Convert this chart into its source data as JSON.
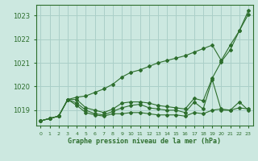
{
  "title": "Graphe pression niveau de la mer (hPa)",
  "bg_color": "#cce8e0",
  "grid_color": "#aacfc8",
  "line_color": "#2d6e2d",
  "xlim": [
    -0.5,
    23.5
  ],
  "ylim": [
    1018.35,
    1023.45
  ],
  "yticks": [
    1019,
    1020,
    1021,
    1022,
    1023
  ],
  "xticks": [
    0,
    1,
    2,
    3,
    4,
    5,
    6,
    7,
    8,
    9,
    10,
    11,
    12,
    13,
    14,
    15,
    16,
    17,
    18,
    19,
    20,
    21,
    22,
    23
  ],
  "line_high": [
    1018.55,
    1018.65,
    1018.75,
    1019.45,
    1019.55,
    1019.6,
    1019.75,
    1019.9,
    1020.1,
    1020.4,
    1020.6,
    1020.7,
    1020.85,
    1021.0,
    1021.1,
    1021.2,
    1021.3,
    1021.45,
    1021.6,
    1021.75,
    1021.1,
    1021.75,
    1022.35,
    1023.2
  ],
  "line_mid1": [
    1018.55,
    1018.65,
    1018.75,
    1019.45,
    1019.45,
    1019.1,
    1019.0,
    1018.9,
    1019.05,
    1019.3,
    1019.35,
    1019.35,
    1019.3,
    1019.2,
    1019.15,
    1019.1,
    1019.05,
    1019.5,
    1019.4,
    1020.35,
    1021.05,
    1021.55,
    1022.35,
    1023.05
  ],
  "line_mid2": [
    1018.55,
    1018.65,
    1018.75,
    1019.45,
    1019.3,
    1019.0,
    1018.85,
    1018.8,
    1018.95,
    1019.1,
    1019.2,
    1019.25,
    1019.1,
    1019.05,
    1019.0,
    1019.0,
    1018.9,
    1019.35,
    1019.05,
    1020.3,
    1019.0,
    1019.0,
    1019.35,
    1019.0
  ],
  "line_low": [
    1018.55,
    1018.65,
    1018.75,
    1019.45,
    1019.2,
    1018.9,
    1018.8,
    1018.75,
    1018.85,
    1018.85,
    1018.9,
    1018.9,
    1018.85,
    1018.8,
    1018.8,
    1018.8,
    1018.75,
    1018.9,
    1018.85,
    1019.0,
    1019.05,
    1019.0,
    1019.1,
    1019.05
  ]
}
